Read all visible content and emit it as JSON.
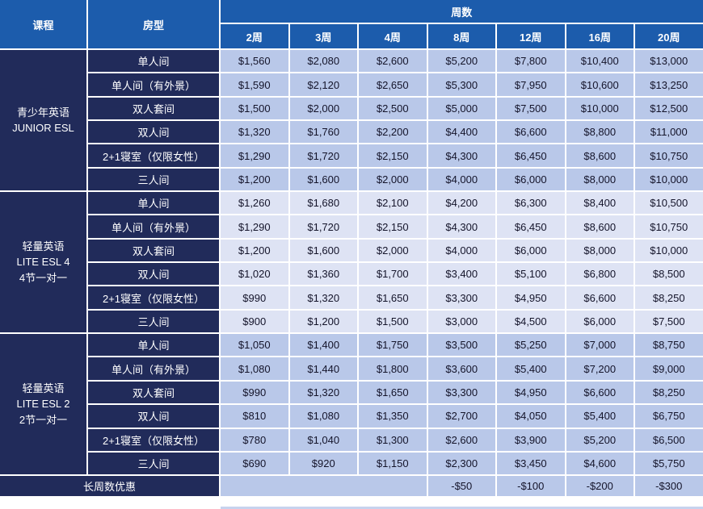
{
  "table": {
    "header": {
      "course": "课程",
      "room": "房型",
      "weeks_label": "周数",
      "week_columns": [
        "2周",
        "3周",
        "4周",
        "8周",
        "12周",
        "16周",
        "20周"
      ]
    },
    "groups": [
      {
        "course_lines": [
          "青少年英语",
          "JUNIOR ESL"
        ],
        "band": "a",
        "rows": [
          {
            "room": "单人间",
            "prices": [
              "$1,560",
              "$2,080",
              "$2,600",
              "$5,200",
              "$7,800",
              "$10,400",
              "$13,000"
            ]
          },
          {
            "room": "单人间（有外景）",
            "prices": [
              "$1,590",
              "$2,120",
              "$2,650",
              "$5,300",
              "$7,950",
              "$10,600",
              "$13,250"
            ]
          },
          {
            "room": "双人套间",
            "prices": [
              "$1,500",
              "$2,000",
              "$2,500",
              "$5,000",
              "$7,500",
              "$10,000",
              "$12,500"
            ]
          },
          {
            "room": "双人间",
            "prices": [
              "$1,320",
              "$1,760",
              "$2,200",
              "$4,400",
              "$6,600",
              "$8,800",
              "$11,000"
            ]
          },
          {
            "room": "2+1寝室（仅限女性）",
            "prices": [
              "$1,290",
              "$1,720",
              "$2,150",
              "$4,300",
              "$6,450",
              "$8,600",
              "$10,750"
            ]
          },
          {
            "room": "三人间",
            "prices": [
              "$1,200",
              "$1,600",
              "$2,000",
              "$4,000",
              "$6,000",
              "$8,000",
              "$10,000"
            ]
          }
        ]
      },
      {
        "course_lines": [
          "轻量英语",
          "LITE ESL 4",
          "4节一对一"
        ],
        "band": "b",
        "rows": [
          {
            "room": "单人间",
            "prices": [
              "$1,260",
              "$1,680",
              "$2,100",
              "$4,200",
              "$6,300",
              "$8,400",
              "$10,500"
            ]
          },
          {
            "room": "单人间（有外景）",
            "prices": [
              "$1,290",
              "$1,720",
              "$2,150",
              "$4,300",
              "$6,450",
              "$8,600",
              "$10,750"
            ]
          },
          {
            "room": "双人套间",
            "prices": [
              "$1,200",
              "$1,600",
              "$2,000",
              "$4,000",
              "$6,000",
              "$8,000",
              "$10,000"
            ]
          },
          {
            "room": "双人间",
            "prices": [
              "$1,020",
              "$1,360",
              "$1,700",
              "$3,400",
              "$5,100",
              "$6,800",
              "$8,500"
            ]
          },
          {
            "room": "2+1寝室（仅限女性）",
            "prices": [
              "$990",
              "$1,320",
              "$1,650",
              "$3,300",
              "$4,950",
              "$6,600",
              "$8,250"
            ]
          },
          {
            "room": "三人间",
            "prices": [
              "$900",
              "$1,200",
              "$1,500",
              "$3,000",
              "$4,500",
              "$6,000",
              "$7,500"
            ]
          }
        ]
      },
      {
        "course_lines": [
          "轻量英语",
          "LITE ESL 2",
          "2节一对一"
        ],
        "band": "a",
        "rows": [
          {
            "room": "单人间",
            "prices": [
              "$1,050",
              "$1,400",
              "$1,750",
              "$3,500",
              "$5,250",
              "$7,000",
              "$8,750"
            ]
          },
          {
            "room": "单人间（有外景）",
            "prices": [
              "$1,080",
              "$1,440",
              "$1,800",
              "$3,600",
              "$5,400",
              "$7,200",
              "$9,000"
            ]
          },
          {
            "room": "双人套间",
            "prices": [
              "$990",
              "$1,320",
              "$1,650",
              "$3,300",
              "$4,950",
              "$6,600",
              "$8,250"
            ]
          },
          {
            "room": "双人间",
            "prices": [
              "$810",
              "$1,080",
              "$1,350",
              "$2,700",
              "$4,050",
              "$5,400",
              "$6,750"
            ]
          },
          {
            "room": "2+1寝室（仅限女性）",
            "prices": [
              "$780",
              "$1,040",
              "$1,300",
              "$2,600",
              "$3,900",
              "$5,200",
              "$6,500"
            ]
          },
          {
            "room": "三人间",
            "prices": [
              "$690",
              "$920",
              "$1,150",
              "$2,300",
              "$3,450",
              "$4,600",
              "$5,750"
            ]
          }
        ]
      }
    ],
    "footer": {
      "label": "长周数优惠",
      "empty_week_columns": 3,
      "values": [
        "-$50",
        "-$100",
        "-$200",
        "-$300"
      ]
    },
    "colors": {
      "header_blue": "#1c5cac",
      "navy": "#212b5a",
      "band_a": "#b9c8e9",
      "band_b": "#dee3f4",
      "gridline": "#ffffff",
      "price_text": "#14142a",
      "header_text": "#ffffff",
      "bottom_strip": "#c7d3ee"
    }
  }
}
